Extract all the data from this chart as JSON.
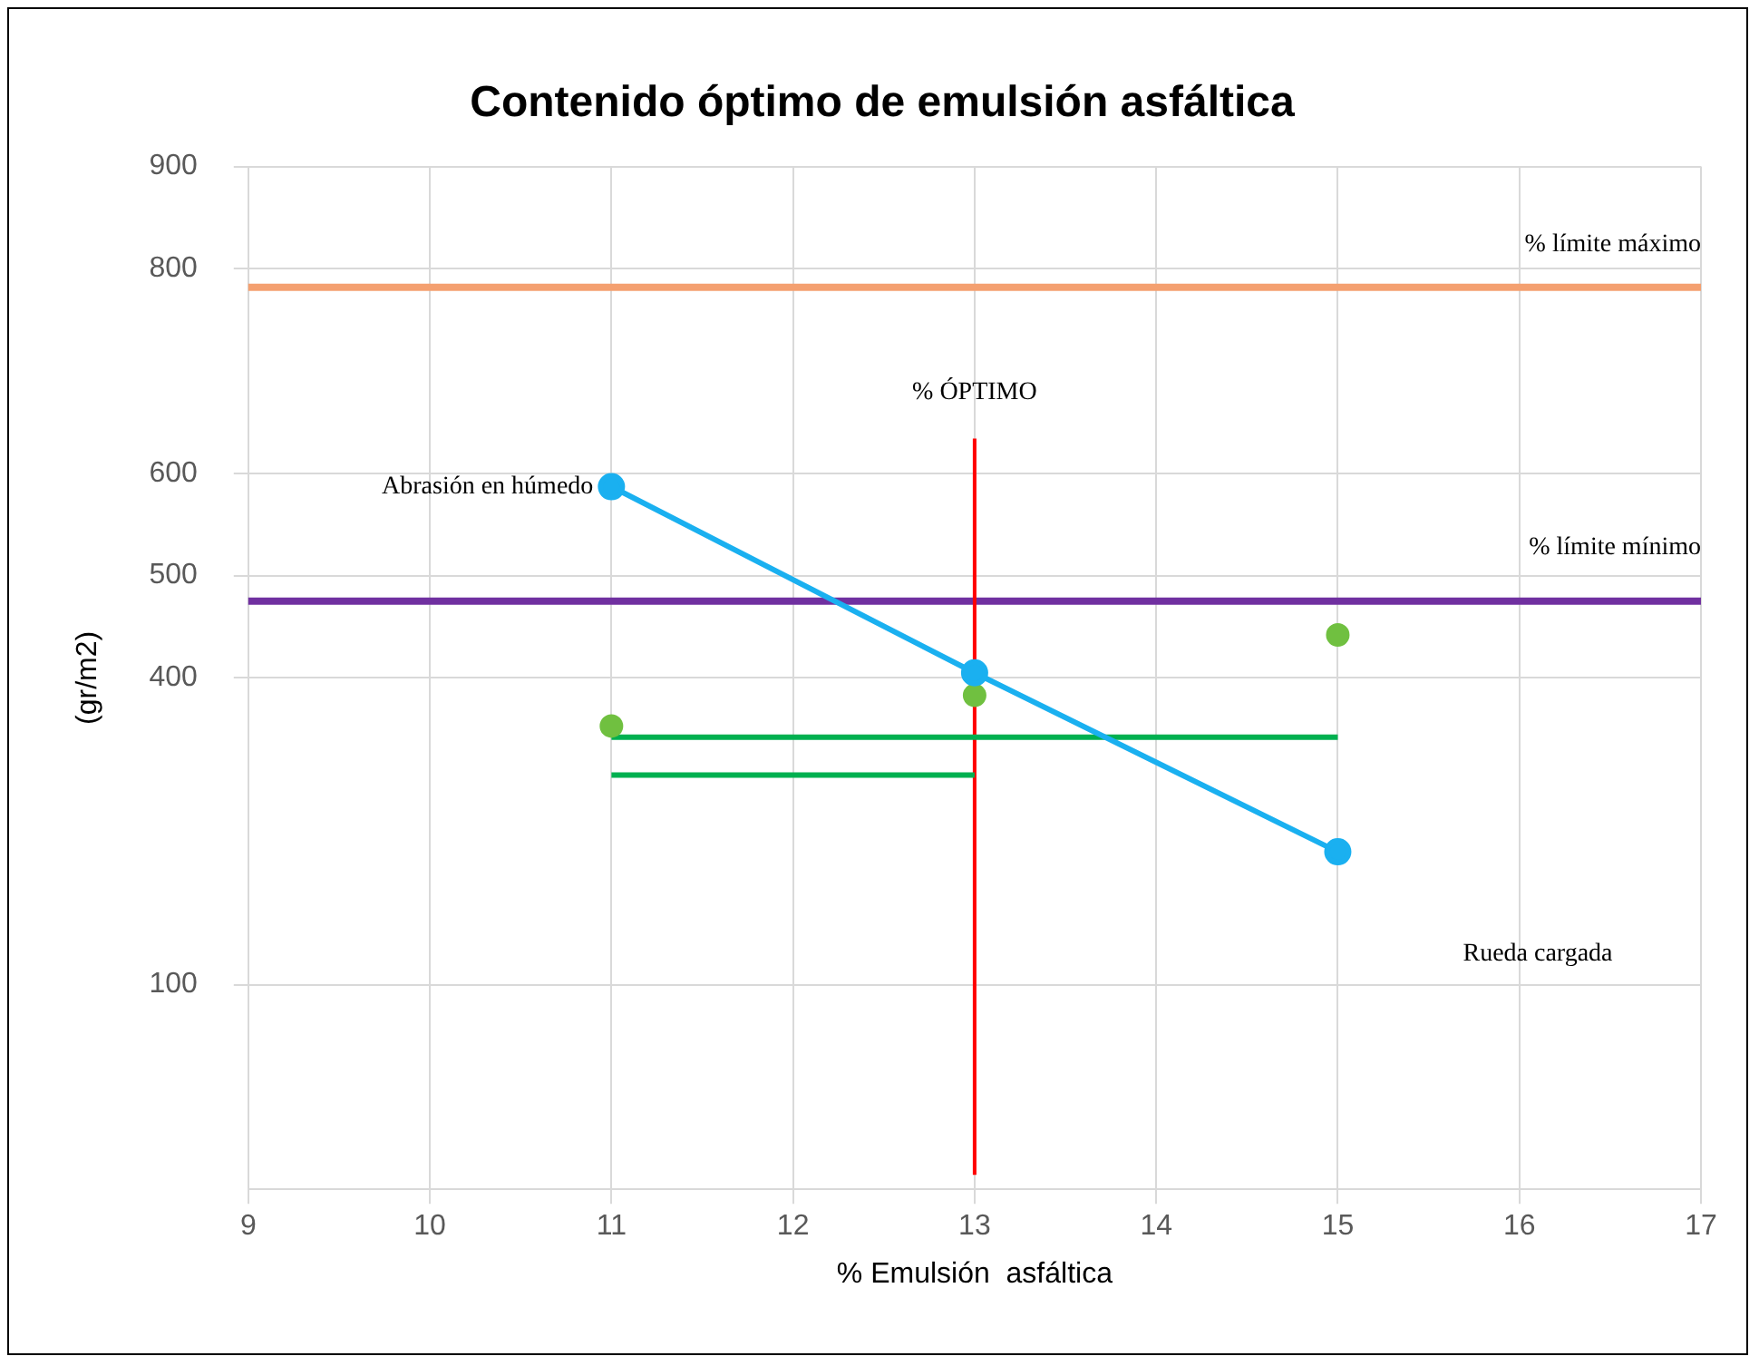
{
  "chart_data": {
    "type": "line",
    "title": "Contenido óptimo de emulsión asfáltica",
    "xlabel": "% Emulsión  asfáltica",
    "ylabel": "(gr/m2)",
    "xlim": [
      9,
      17
    ],
    "xticks": [
      9,
      10,
      11,
      12,
      13,
      14,
      15,
      16,
      17
    ],
    "ylim": [
      -100,
      900
    ],
    "yticks": [
      100,
      400,
      500,
      600,
      800,
      900
    ],
    "grid": true,
    "legend": false,
    "series": [
      {
        "name": "Abrasión en húmedo",
        "color": "#1ab0f0",
        "x": [
          11,
          13,
          15
        ],
        "values": [
          587,
          405,
          230
        ],
        "marker": "circle"
      },
      {
        "type": "scatter",
        "color": "#70c040",
        "x": [
          11,
          13,
          15
        ],
        "values": [
          353,
          383,
          442
        ],
        "marker": "circle"
      },
      {
        "type": "line",
        "color": "#00b050",
        "x": [
          11,
          15
        ],
        "values": [
          342,
          342
        ],
        "marker": "none"
      },
      {
        "type": "line",
        "color": "#00b050",
        "x": [
          11,
          13
        ],
        "values": [
          305,
          305
        ],
        "marker": "none"
      }
    ],
    "ref_lines": [
      {
        "axis": "y",
        "value": 782,
        "color": "#f4a070",
        "label": "% límite máximo"
      },
      {
        "axis": "y",
        "value": 475,
        "color": "#7030a0",
        "label": "% límite mínimo"
      },
      {
        "axis": "x",
        "value": 13,
        "color": "#ff0000",
        "label": "% ÓPTIMO"
      }
    ],
    "annotations": [
      "Rueda cargada"
    ]
  }
}
